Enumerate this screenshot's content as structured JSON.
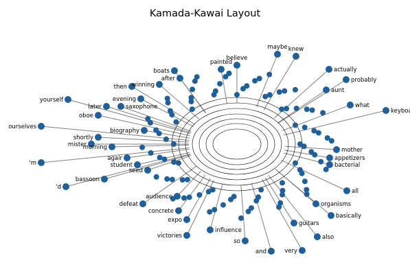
{
  "figure": {
    "title": "Kamada-Kawai Layout",
    "node_color": "#1f5f9a",
    "edge_color": "#808080",
    "label_color": "#000000",
    "background": "#ffffff"
  },
  "labeled_nodes": [
    {
      "name": "maybe"
    },
    {
      "name": "knew"
    },
    {
      "name": "believe"
    },
    {
      "name": "actually"
    },
    {
      "name": "boats"
    },
    {
      "name": "painted"
    },
    {
      "name": "after"
    },
    {
      "name": "winning"
    },
    {
      "name": "then"
    },
    {
      "name": "probably"
    },
    {
      "name": "aunt"
    },
    {
      "name": "yourself"
    },
    {
      "name": "what"
    },
    {
      "name": "keyboard"
    },
    {
      "name": "later"
    },
    {
      "name": "saxophone"
    },
    {
      "name": "oboe"
    },
    {
      "name": "ourselves"
    },
    {
      "name": "shortly"
    },
    {
      "name": "mister"
    },
    {
      "name": "morning"
    },
    {
      "name": "'m"
    },
    {
      "name": "student"
    },
    {
      "name": "bassoon"
    },
    {
      "name": "'d"
    },
    {
      "name": "bacterial"
    },
    {
      "name": "all"
    },
    {
      "name": "organisms"
    },
    {
      "name": "basically"
    },
    {
      "name": "defeat"
    },
    {
      "name": "concrete"
    },
    {
      "name": "victories"
    },
    {
      "name": "influence"
    },
    {
      "name": "so"
    },
    {
      "name": "guitars"
    },
    {
      "name": "also"
    },
    {
      "name": "and"
    },
    {
      "name": "very"
    },
    {
      "name": "appetizers"
    },
    {
      "name": "mother"
    },
    {
      "name": "biography"
    },
    {
      "name": "evening"
    },
    {
      "name": "agair"
    },
    {
      "name": "seed"
    },
    {
      "name": "expo"
    },
    {
      "name": "audience"
    }
  ]
}
